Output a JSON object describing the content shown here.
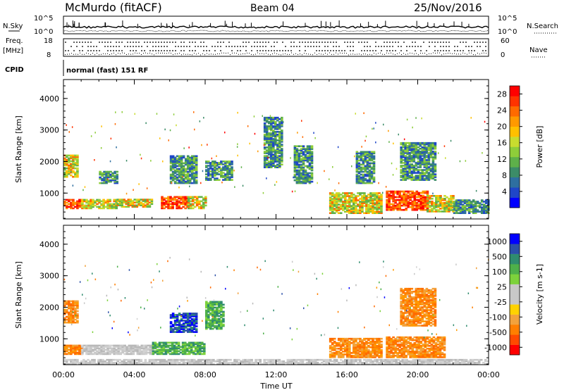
{
  "header": {
    "station": "McMurdo (fitACF)",
    "beam": "Beam 04",
    "date": "25/Nov/2016"
  },
  "strip": {
    "nsky_label": "N.Sky",
    "nsearch_label": "N.Search",
    "freq_label": "Freq.",
    "freq_unit": "[MHz]",
    "nave_label": "Nave",
    "cpid_label": "CPID",
    "cpid_value": "normal (fast) 151 RF",
    "noise_ticks_left": [
      "10^5",
      "10^0"
    ],
    "noise_ticks_right": [
      "10^5",
      "10^0"
    ],
    "freq_ticks": [
      "18",
      "8"
    ],
    "nave_ticks": [
      "60",
      "0"
    ]
  },
  "chart_data": [
    {
      "type": "heatmap",
      "title": "",
      "xlabel": "Time UT",
      "ylabel": "Slant Range [km]",
      "x_ticks": [
        "00:00",
        "04:00",
        "08:00",
        "12:00",
        "16:00",
        "20:00",
        "00:00"
      ],
      "xlim_hours": [
        0,
        24
      ],
      "ylim": [
        180,
        4600
      ],
      "y_ticks": [
        1000,
        2000,
        3000,
        4000
      ],
      "colorbar": {
        "label": "Power [dB]",
        "range": [
          0,
          30
        ],
        "ticks": [
          "4",
          "8",
          "12",
          "16",
          "20",
          "24",
          "28"
        ],
        "colors": [
          "#0000ff",
          "#1f46c8",
          "#2e6fa0",
          "#3c8c68",
          "#5eb04a",
          "#8ecd3a",
          "#c8dc2f",
          "#ffc000",
          "#ff9900",
          "#ff6a00",
          "#ff3300",
          "#ff0000"
        ]
      },
      "features": [
        {
          "t": [
            0.0,
            1.0
          ],
          "r": [
            500,
            800
          ],
          "level": "high"
        },
        {
          "t": [
            1.0,
            3.0
          ],
          "r": [
            500,
            800
          ],
          "level": "mid"
        },
        {
          "t": [
            3.0,
            5.0
          ],
          "r": [
            550,
            800
          ],
          "level": "mid"
        },
        {
          "t": [
            5.5,
            7.0
          ],
          "r": [
            500,
            900
          ],
          "level": "high"
        },
        {
          "t": [
            7.0,
            8.0
          ],
          "r": [
            500,
            900
          ],
          "level": "mid"
        },
        {
          "t": [
            15.0,
            18.0
          ],
          "r": [
            350,
            1000
          ],
          "level": "mid"
        },
        {
          "t": [
            18.2,
            20.5
          ],
          "r": [
            450,
            1050
          ],
          "level": "high"
        },
        {
          "t": [
            20.5,
            22.0
          ],
          "r": [
            400,
            900
          ],
          "level": "mid"
        },
        {
          "t": [
            22.0,
            24.0
          ],
          "r": [
            350,
            800
          ],
          "level": "low"
        },
        {
          "t": [
            0.0,
            0.8
          ],
          "r": [
            1500,
            2200
          ],
          "level": "mid"
        },
        {
          "t": [
            2.0,
            3.0
          ],
          "r": [
            1300,
            1700
          ],
          "level": "low"
        },
        {
          "t": [
            6.0,
            7.5
          ],
          "r": [
            1300,
            2200
          ],
          "level": "low"
        },
        {
          "t": [
            8.0,
            9.5
          ],
          "r": [
            1400,
            2000
          ],
          "level": "low"
        },
        {
          "t": [
            11.3,
            12.3
          ],
          "r": [
            1800,
            3400
          ],
          "level": "low"
        },
        {
          "t": [
            13.0,
            14.0
          ],
          "r": [
            1300,
            2500
          ],
          "level": "low"
        },
        {
          "t": [
            16.5,
            17.5
          ],
          "r": [
            1300,
            2300
          ],
          "level": "low"
        },
        {
          "t": [
            19.0,
            21.0
          ],
          "r": [
            1400,
            2600
          ],
          "level": "low"
        }
      ]
    },
    {
      "type": "heatmap",
      "title": "",
      "xlabel": "Time UT",
      "ylabel": "Slant Range [km]",
      "x_ticks": [
        "00:00",
        "04:00",
        "08:00",
        "12:00",
        "16:00",
        "20:00",
        "00:00"
      ],
      "xlim_hours": [
        0,
        24
      ],
      "ylim": [
        180,
        4600
      ],
      "y_ticks": [
        1000,
        2000,
        3000,
        4000
      ],
      "colorbar": {
        "label": "Velocity [m s-1]",
        "range": [
          -1000,
          1000
        ],
        "ticks": [
          "1000",
          "500",
          "100",
          "25",
          "-25",
          "-100",
          "-500",
          "-1000"
        ],
        "colors": [
          "#ff0000",
          "#ff4a00",
          "#ff7f00",
          "#f2a23c",
          "#ffd200",
          "#c8c8c8",
          "#c8c8c8",
          "#7dd23c",
          "#4eb04a",
          "#2f8c6e",
          "#2b50a8",
          "#0000ff"
        ]
      },
      "features": [
        {
          "t": [
            0.0,
            1.0
          ],
          "r": [
            500,
            800
          ],
          "level": "orange"
        },
        {
          "t": [
            1.0,
            5.0
          ],
          "r": [
            500,
            800
          ],
          "level": "gray"
        },
        {
          "t": [
            5.0,
            8.0
          ],
          "r": [
            500,
            900
          ],
          "level": "green"
        },
        {
          "t": [
            6.0,
            7.5
          ],
          "r": [
            1200,
            1800
          ],
          "level": "blue"
        },
        {
          "t": [
            8.0,
            9.0
          ],
          "r": [
            1300,
            2200
          ],
          "level": "green"
        },
        {
          "t": [
            15.0,
            18.0
          ],
          "r": [
            400,
            1000
          ],
          "level": "orange"
        },
        {
          "t": [
            18.2,
            21.5
          ],
          "r": [
            400,
            1050
          ],
          "level": "orange"
        },
        {
          "t": [
            0.0,
            0.8
          ],
          "r": [
            1500,
            2200
          ],
          "level": "orange"
        },
        {
          "t": [
            19.0,
            21.0
          ],
          "r": [
            1400,
            2600
          ],
          "level": "orange"
        },
        {
          "t": [
            0.0,
            24.0
          ],
          "r": [
            180,
            350
          ],
          "level": "gray"
        }
      ]
    }
  ]
}
